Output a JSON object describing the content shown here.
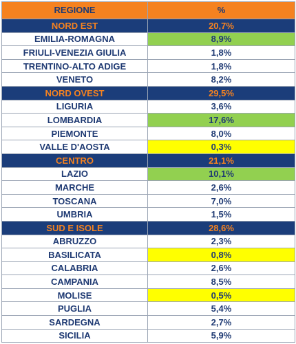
{
  "header": {
    "region_label": "REGIONE",
    "pct_label": "%"
  },
  "colors": {
    "header_bg": "#f58220",
    "group_bg": "#1b3d7a",
    "group_text": "#f58220",
    "text": "#1f3a73",
    "highlight_green": "#92d050",
    "highlight_yellow": "#ffff00"
  },
  "rows": [
    {
      "type": "group",
      "name": "NORD EST",
      "pct": "20,7%",
      "highlight": ""
    },
    {
      "type": "region",
      "name": "EMILIA-ROMAGNA",
      "pct": "8,9%",
      "highlight": "green"
    },
    {
      "type": "region",
      "name": "FRIULI-VENEZIA GIULIA",
      "pct": "1,8%",
      "highlight": ""
    },
    {
      "type": "region",
      "name": "TRENTINO-ALTO ADIGE",
      "pct": "1,8%",
      "highlight": ""
    },
    {
      "type": "region",
      "name": "VENETO",
      "pct": "8,2%",
      "highlight": ""
    },
    {
      "type": "group",
      "name": "NORD OVEST",
      "pct": "29,5%",
      "highlight": ""
    },
    {
      "type": "region",
      "name": "LIGURIA",
      "pct": "3,6%",
      "highlight": ""
    },
    {
      "type": "region",
      "name": "LOMBARDIA",
      "pct": "17,6%",
      "highlight": "green"
    },
    {
      "type": "region",
      "name": "PIEMONTE",
      "pct": "8,0%",
      "highlight": ""
    },
    {
      "type": "region",
      "name": "VALLE D'AOSTA",
      "pct": "0,3%",
      "highlight": "yellow"
    },
    {
      "type": "group",
      "name": "CENTRO",
      "pct": "21,1%",
      "highlight": ""
    },
    {
      "type": "region",
      "name": "LAZIO",
      "pct": "10,1%",
      "highlight": "green"
    },
    {
      "type": "region",
      "name": "MARCHE",
      "pct": "2,6%",
      "highlight": ""
    },
    {
      "type": "region",
      "name": "TOSCANA",
      "pct": "7,0%",
      "highlight": ""
    },
    {
      "type": "region",
      "name": "UMBRIA",
      "pct": "1,5%",
      "highlight": ""
    },
    {
      "type": "group",
      "name": "SUD E ISOLE",
      "pct": "28,6%",
      "highlight": ""
    },
    {
      "type": "region",
      "name": "ABRUZZO",
      "pct": "2,3%",
      "highlight": ""
    },
    {
      "type": "region",
      "name": "BASILICATA",
      "pct": "0,8%",
      "highlight": "yellow"
    },
    {
      "type": "region",
      "name": "CALABRIA",
      "pct": "2,6%",
      "highlight": ""
    },
    {
      "type": "region",
      "name": "CAMPANIA",
      "pct": "8,5%",
      "highlight": ""
    },
    {
      "type": "region",
      "name": "MOLISE",
      "pct": "0,5%",
      "highlight": "yellow"
    },
    {
      "type": "region",
      "name": "PUGLIA",
      "pct": "5,4%",
      "highlight": ""
    },
    {
      "type": "region",
      "name": "SARDEGNA",
      "pct": "2,7%",
      "highlight": ""
    },
    {
      "type": "region",
      "name": "SICILIA",
      "pct": "5,9%",
      "highlight": ""
    }
  ]
}
